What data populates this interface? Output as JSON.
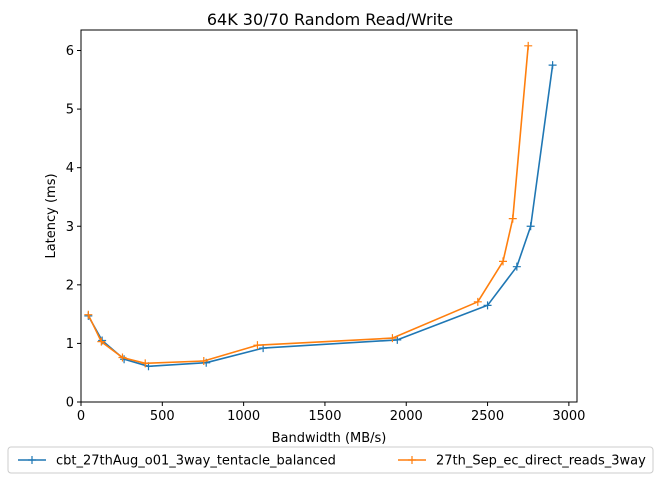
{
  "chart_data": {
    "type": "line",
    "title": "64K 30/70  Random Read/Write",
    "xlabel": "Bandwidth (MB/s)",
    "ylabel": "Latency (ms)",
    "xlim": [
      0,
      3050
    ],
    "ylim": [
      0,
      6.35
    ],
    "xticks": [
      0,
      500,
      1000,
      1500,
      2000,
      2500,
      3000
    ],
    "yticks": [
      0,
      1,
      2,
      3,
      4,
      5,
      6
    ],
    "grid": false,
    "legend_placement": "bottom-center",
    "marker": "+",
    "series": [
      {
        "name": "cbt_27thAug_o01_3way_tentacle_balanced",
        "color": "#1f77b4",
        "x": [
          45,
          130,
          265,
          415,
          770,
          1120,
          1945,
          2500,
          2680,
          2765,
          2900
        ],
        "y": [
          1.47,
          1.05,
          0.73,
          0.61,
          0.67,
          0.92,
          1.06,
          1.65,
          2.31,
          3.0,
          5.75
        ]
      },
      {
        "name": "27th_Sep_ec_direct_reads_3way",
        "color": "#ff7f0e",
        "x": [
          45,
          125,
          255,
          395,
          755,
          1085,
          1915,
          2440,
          2595,
          2655,
          2750
        ],
        "y": [
          1.49,
          1.03,
          0.76,
          0.66,
          0.7,
          0.97,
          1.09,
          1.71,
          2.4,
          3.13,
          6.08
        ]
      }
    ]
  }
}
